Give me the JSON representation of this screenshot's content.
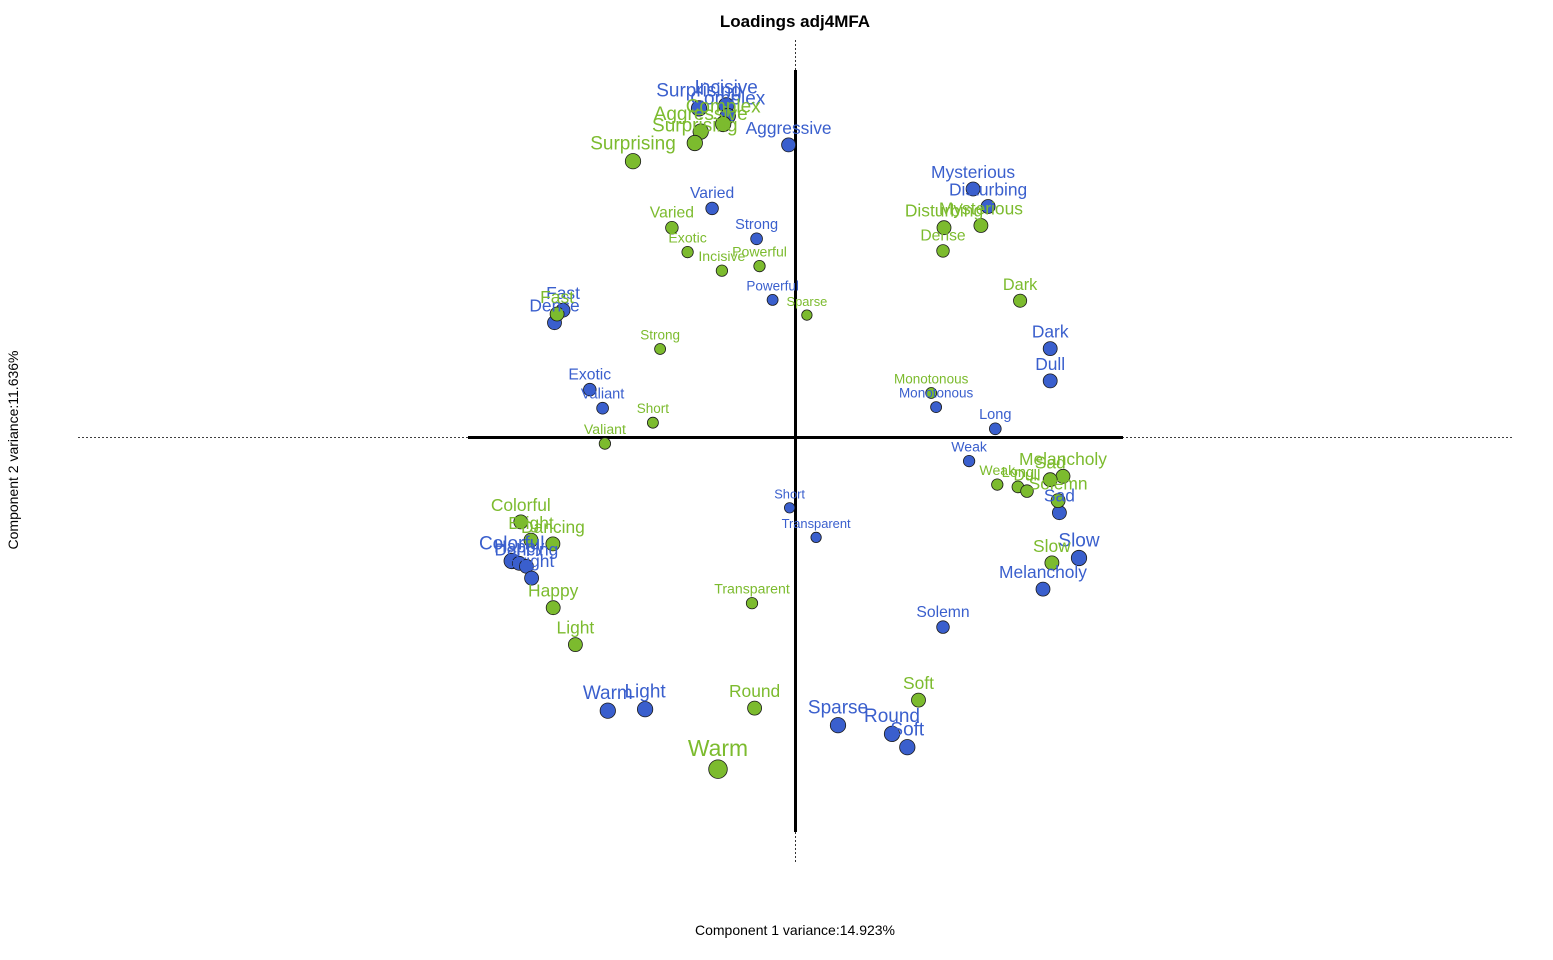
{
  "chart_data": {
    "type": "scatter",
    "title": "Loadings adj4MFA",
    "xlabel": "Component 1 variance:14.923%",
    "ylabel": "Component 2 variance:11.636%",
    "xlim": [
      -1.0,
      1.0
    ],
    "ylim": [
      -1.0,
      1.0
    ],
    "grid": false,
    "legend": "none",
    "series": [
      {
        "color": "#3a5fcd",
        "points": [
          {
            "label": "Incisive",
            "x": -0.212,
            "y": 0.874,
            "size": 1.0
          },
          {
            "label": "Surprising",
            "x": -0.295,
            "y": 0.866,
            "size": 1.0
          },
          {
            "label": "Complex",
            "x": -0.207,
            "y": 0.846,
            "size": 1.0
          },
          {
            "label": "Aggressive",
            "x": -0.021,
            "y": 0.77,
            "size": 0.85
          },
          {
            "label": "Mysterious",
            "x": 0.543,
            "y": 0.654,
            "size": 0.85
          },
          {
            "label": "Disturbing",
            "x": 0.589,
            "y": 0.608,
            "size": 0.85
          },
          {
            "label": "Varied",
            "x": -0.255,
            "y": 0.603,
            "size": 0.7
          },
          {
            "label": "Strong",
            "x": -0.119,
            "y": 0.523,
            "size": 0.6
          },
          {
            "label": "Powerful",
            "x": -0.07,
            "y": 0.362,
            "size": 0.5
          },
          {
            "label": "Fast",
            "x": -0.711,
            "y": 0.335,
            "size": 0.85
          },
          {
            "label": "Dense",
            "x": -0.737,
            "y": 0.302,
            "size": 0.85
          },
          {
            "label": "Dark",
            "x": 0.779,
            "y": 0.234,
            "size": 0.85
          },
          {
            "label": "Dull",
            "x": 0.779,
            "y": 0.149,
            "size": 0.85
          },
          {
            "label": "Exotic",
            "x": -0.629,
            "y": 0.126,
            "size": 0.7
          },
          {
            "label": "Valiant",
            "x": -0.59,
            "y": 0.077,
            "size": 0.6
          },
          {
            "label": "Monotonous",
            "x": 0.43,
            "y": 0.08,
            "size": 0.5
          },
          {
            "label": "Long",
            "x": 0.611,
            "y": 0.023,
            "size": 0.6
          },
          {
            "label": "Weak",
            "x": 0.531,
            "y": -0.062,
            "size": 0.55
          },
          {
            "label": "Sad",
            "x": 0.807,
            "y": -0.198,
            "size": 0.85
          },
          {
            "label": "Short",
            "x": -0.018,
            "y": -0.185,
            "size": 0.45
          },
          {
            "label": "Transparent",
            "x": 0.063,
            "y": -0.263,
            "size": 0.45
          },
          {
            "label": "Slow",
            "x": 0.867,
            "y": -0.317,
            "size": 1.0
          },
          {
            "label": "Colorful",
            "x": -0.868,
            "y": -0.325,
            "size": 1.0
          },
          {
            "label": "Happy",
            "x": -0.845,
            "y": -0.331,
            "size": 0.85
          },
          {
            "label": "Dancing",
            "x": -0.823,
            "y": -0.339,
            "size": 0.85
          },
          {
            "label": "Bright",
            "x": -0.807,
            "y": -0.37,
            "size": 0.85
          },
          {
            "label": "Melancholy",
            "x": 0.757,
            "y": -0.399,
            "size": 0.85
          },
          {
            "label": "Solemn",
            "x": 0.451,
            "y": -0.499,
            "size": 0.7
          },
          {
            "label": "Warm",
            "x": -0.574,
            "y": -0.719,
            "size": 1.0
          },
          {
            "label": "Light",
            "x": -0.46,
            "y": -0.715,
            "size": 1.0
          },
          {
            "label": "Sparse",
            "x": 0.13,
            "y": -0.757,
            "size": 1.0
          },
          {
            "label": "Round",
            "x": 0.295,
            "y": -0.78,
            "size": 1.0
          },
          {
            "label": "Soft",
            "x": 0.342,
            "y": -0.815,
            "size": 1.0
          }
        ]
      },
      {
        "color": "#7cbb2e",
        "points": [
          {
            "label": "Complex",
            "x": -0.221,
            "y": 0.825,
            "size": 1.0
          },
          {
            "label": "Aggressive",
            "x": -0.29,
            "y": 0.805,
            "size": 1.0
          },
          {
            "label": "Surprising",
            "x": -0.308,
            "y": 0.775,
            "size": 1.0
          },
          {
            "label": "Surprising",
            "x": -0.497,
            "y": 0.727,
            "size": 1.0
          },
          {
            "label": "Varied",
            "x": -0.378,
            "y": 0.552,
            "size": 0.7
          },
          {
            "label": "Exotic",
            "x": -0.33,
            "y": 0.488,
            "size": 0.55
          },
          {
            "label": "Powerful",
            "x": -0.11,
            "y": 0.451,
            "size": 0.55
          },
          {
            "label": "Incisive",
            "x": -0.225,
            "y": 0.439,
            "size": 0.55
          },
          {
            "label": "Mysterious",
            "x": 0.567,
            "y": 0.558,
            "size": 0.85
          },
          {
            "label": "Disturbing",
            "x": 0.454,
            "y": 0.552,
            "size": 0.85
          },
          {
            "label": "Dense",
            "x": 0.451,
            "y": 0.491,
            "size": 0.7
          },
          {
            "label": "Dark",
            "x": 0.687,
            "y": 0.36,
            "size": 0.75
          },
          {
            "label": "Sparse",
            "x": 0.035,
            "y": 0.322,
            "size": 0.45
          },
          {
            "label": "Fast",
            "x": -0.729,
            "y": 0.325,
            "size": 0.85
          },
          {
            "label": "Strong",
            "x": -0.414,
            "y": 0.233,
            "size": 0.5
          },
          {
            "label": "Monotonous",
            "x": 0.415,
            "y": 0.117,
            "size": 0.5
          },
          {
            "label": "Short",
            "x": -0.436,
            "y": 0.039,
            "size": 0.5
          },
          {
            "label": "Valiant",
            "x": -0.583,
            "y": -0.016,
            "size": 0.55
          },
          {
            "label": "Melancholy",
            "x": 0.818,
            "y": -0.102,
            "size": 0.85
          },
          {
            "label": "Sad",
            "x": 0.779,
            "y": -0.111,
            "size": 0.85
          },
          {
            "label": "Weak",
            "x": 0.617,
            "y": -0.124,
            "size": 0.55
          },
          {
            "label": "Long",
            "x": 0.68,
            "y": -0.13,
            "size": 0.6
          },
          {
            "label": "Dull",
            "x": 0.708,
            "y": -0.141,
            "size": 0.7
          },
          {
            "label": "Solemn",
            "x": 0.803,
            "y": -0.166,
            "size": 0.85
          },
          {
            "label": "Colorful",
            "x": -0.84,
            "y": -0.222,
            "size": 0.85
          },
          {
            "label": "Bright",
            "x": -0.809,
            "y": -0.27,
            "size": 0.85
          },
          {
            "label": "Dancing",
            "x": -0.742,
            "y": -0.28,
            "size": 0.85
          },
          {
            "label": "Slow",
            "x": 0.784,
            "y": -0.33,
            "size": 0.85
          },
          {
            "label": "Happy",
            "x": -0.741,
            "y": -0.448,
            "size": 0.85
          },
          {
            "label": "Transparent",
            "x": -0.133,
            "y": -0.436,
            "size": 0.55
          },
          {
            "label": "Light",
            "x": -0.673,
            "y": -0.545,
            "size": 0.85
          },
          {
            "label": "Round",
            "x": -0.125,
            "y": -0.712,
            "size": 0.85
          },
          {
            "label": "Soft",
            "x": 0.376,
            "y": -0.691,
            "size": 0.85
          },
          {
            "label": "Warm",
            "x": -0.237,
            "y": -0.873,
            "size": 1.35
          }
        ]
      }
    ]
  }
}
